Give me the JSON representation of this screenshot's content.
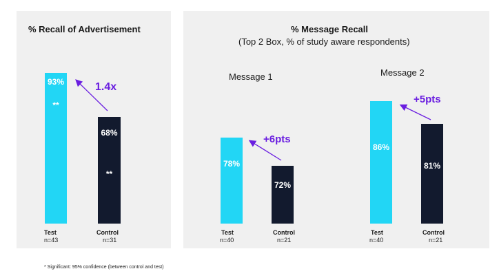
{
  "colors": {
    "test": "#22d6f5",
    "control": "#121a2e",
    "lift": "#6a1ee0",
    "panel": "#f0f0f0"
  },
  "chart_data": [
    {
      "type": "bar",
      "title": "% Recall of Advertisement",
      "categories": [
        {
          "name": "Test",
          "n": "n=43"
        },
        {
          "name": "Control",
          "n": "n=31"
        }
      ],
      "values": [
        93,
        68
      ],
      "value_labels": [
        "93%",
        "68%"
      ],
      "significance": [
        "**",
        "**"
      ],
      "lift": "1.4x",
      "ylim": [
        0,
        100
      ]
    },
    {
      "type": "bar",
      "title": "% Message Recall",
      "subtitle": "(Top 2 Box, % of study aware respondents)",
      "groups": [
        {
          "name": "Message 1",
          "categories": [
            {
              "name": "Test",
              "n": "n=40"
            },
            {
              "name": "Control",
              "n": "n=21"
            }
          ],
          "values": [
            78,
            72
          ],
          "value_labels": [
            "78%",
            "72%"
          ],
          "lift": "+6pts"
        },
        {
          "name": "Message 2",
          "categories": [
            {
              "name": "Test",
              "n": "n=40"
            },
            {
              "name": "Control",
              "n": "n=21"
            }
          ],
          "values": [
            86,
            81
          ],
          "value_labels": [
            "86%",
            "81%"
          ],
          "lift": "+5pts"
        }
      ],
      "ylim": [
        0,
        100
      ]
    }
  ],
  "footnote": "* Significant: 95% confidence (between control and test)"
}
